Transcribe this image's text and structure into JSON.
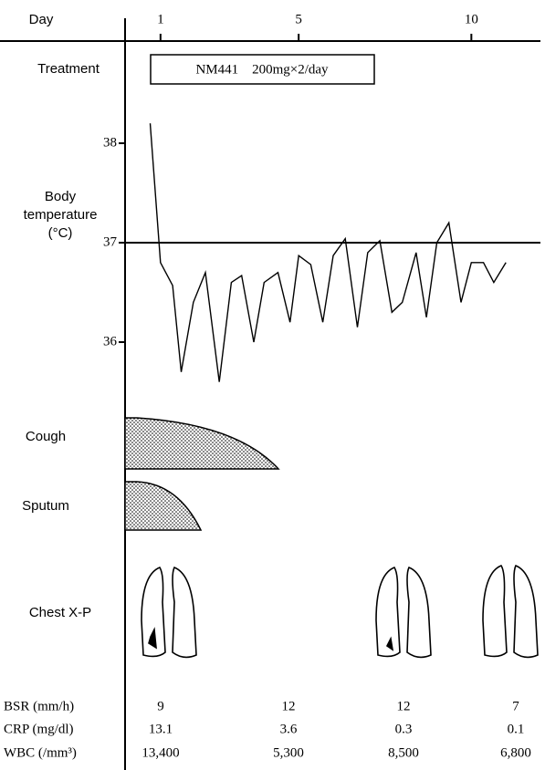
{
  "chart_data": {
    "type": "line",
    "xlabel": "Day",
    "ylabel": [
      "Body",
      "temperature",
      "(°C)"
    ],
    "x": [
      0.7,
      1.0,
      1.35,
      1.6,
      1.95,
      2.3,
      2.7,
      3.05,
      3.35,
      3.7,
      4.0,
      4.4,
      4.75,
      5.0,
      5.35,
      5.7,
      6.0,
      6.35,
      6.7,
      7.0,
      7.35,
      7.7,
      8.0,
      8.4,
      8.7,
      9.0,
      9.35,
      9.7,
      10.0,
      10.35,
      10.65,
      11.0
    ],
    "values": [
      38.2,
      36.8,
      36.57,
      35.7,
      36.4,
      36.7,
      35.6,
      36.6,
      36.67,
      36.0,
      36.6,
      36.7,
      36.2,
      36.87,
      36.78,
      36.2,
      36.87,
      37.04,
      36.15,
      36.9,
      37.02,
      36.3,
      36.4,
      36.9,
      36.25,
      37.0,
      37.2,
      36.4,
      36.8,
      36.8,
      36.6,
      36.8
    ],
    "color": "#000000",
    "xlim": [
      0,
      12
    ],
    "xticks": [
      1,
      5,
      10
    ],
    "ylim": [
      35.5,
      38.5
    ],
    "yticks": [
      36,
      37,
      38
    ],
    "reference_line": 37
  },
  "treatment": {
    "label": "Treatment",
    "text": "NM441　200mg×2/day"
  },
  "symptoms": {
    "cough": "Cough",
    "sputum": "Sputum"
  },
  "chest_xp": "Chest X-P",
  "labs": [
    {
      "label": "BSR (mm/h)",
      "values": [
        "9",
        "12",
        "12",
        "7"
      ]
    },
    {
      "label": "CRP (mg/dl)",
      "values": [
        "13.1",
        "3.6",
        "0.3",
        "0.1"
      ]
    },
    {
      "label": "WBC (/mm³)",
      "values": [
        "13,400",
        "5,300",
        "8,500",
        "6,800"
      ]
    }
  ]
}
